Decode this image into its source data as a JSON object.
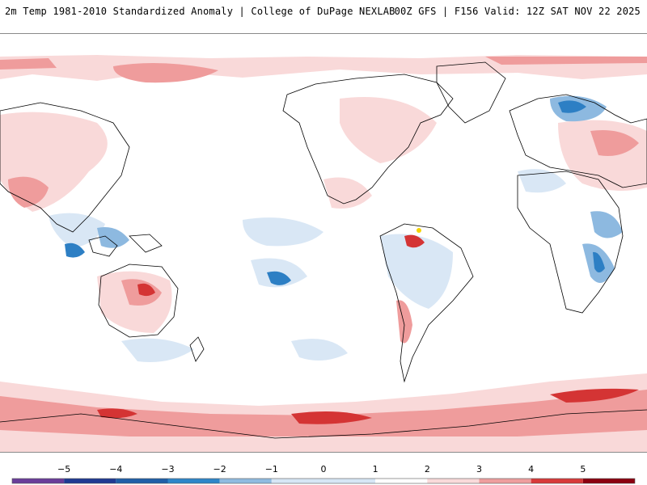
{
  "header": {
    "left_title": "2m Temp 1981-2010 Standardized Anomaly | College of DuPage NEXLAB",
    "right_title": "00Z GFS | F156 Valid: 12Z SAT NOV 22 2025"
  },
  "colorbar": {
    "labels": [
      "-5",
      "-4",
      "-3",
      "-2",
      "-1",
      "0",
      "1",
      "2",
      "3",
      "4",
      "5"
    ],
    "values": [
      -5,
      -4,
      -3,
      -2,
      -1,
      0,
      1,
      2,
      3,
      4,
      5
    ],
    "range": [
      -6,
      6
    ],
    "colors": [
      "#6a3d9a",
      "#1f3a93",
      "#2e86c9",
      "#8fbbe0",
      "#d6e6f5",
      "#ffffff",
      "#f9dada",
      "#ee9e9e",
      "#d83a3a",
      "#8b0010",
      "#f5d400"
    ]
  },
  "map": {
    "projection": "cylindrical",
    "land_outline_color": "#000000",
    "palette": {
      "warm_light": "#f9d9d9",
      "warm_mid": "#ef9c9c",
      "warm_strong": "#d43434",
      "cold_light": "#d9e7f5",
      "cold_mid": "#8db9e0",
      "cold_strong": "#2d7fc4",
      "extreme": "#f5d400"
    }
  }
}
